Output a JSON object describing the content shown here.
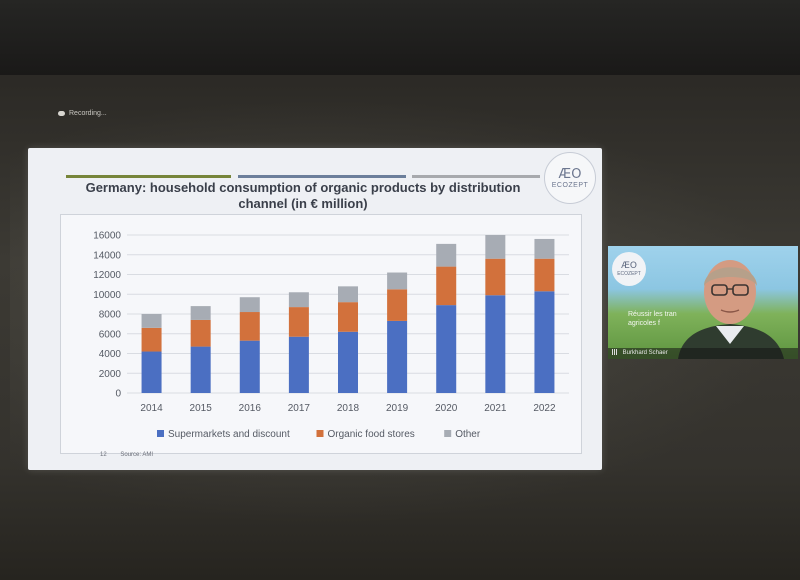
{
  "recording_label": "Recording...",
  "slide": {
    "logo_mark": "ÆO",
    "logo_text": "ECOZEPT",
    "title_line1": "Germany: household consumption of organic products by distribution",
    "title_line2": "channel (in € million)",
    "page_number": "12",
    "source": "Source: AMI"
  },
  "video": {
    "logo_mark": "ÆO",
    "logo_text": "ECOZEPT",
    "text_line1": "Réussir les tran",
    "text_line2": "agricoles f",
    "participant_name": "Burkhard Schaer"
  },
  "colors": {
    "supermarkets": "#4b6fc2",
    "organic_stores": "#d2713c",
    "other": "#a7acb4"
  },
  "chart_data": {
    "type": "bar",
    "stacked": true,
    "title": "Germany: household consumption of organic products by distribution channel (in € million)",
    "categories": [
      "2014",
      "2015",
      "2016",
      "2017",
      "2018",
      "2019",
      "2020",
      "2021",
      "2022"
    ],
    "series": [
      {
        "name": "Supermarkets and discount",
        "values": [
          4200,
          4700,
          5300,
          5700,
          6200,
          7300,
          8900,
          9900,
          10300
        ]
      },
      {
        "name": "Organic food stores",
        "values": [
          2400,
          2700,
          2900,
          3000,
          3000,
          3200,
          3900,
          3700,
          3300
        ]
      },
      {
        "name": "Other",
        "values": [
          1400,
          1400,
          1500,
          1500,
          1600,
          1700,
          2300,
          2400,
          2000
        ]
      }
    ],
    "yticks": [
      "0",
      "2000",
      "4000",
      "6000",
      "8000",
      "10000",
      "12000",
      "14000",
      "16000"
    ],
    "ylim": [
      0,
      16000
    ],
    "grid": true,
    "legend_position": "bottom"
  }
}
